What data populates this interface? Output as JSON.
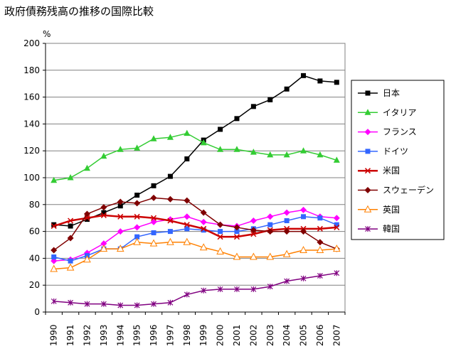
{
  "chart_data": {
    "type": "line",
    "title": "政府債務残高の推移の国際比較",
    "ylabel": "%",
    "xlabel": "",
    "ylim": [
      0,
      200
    ],
    "ytick_step": 20,
    "grid": "horizontal",
    "legend_position": "right",
    "x": [
      "1990",
      "1991",
      "1992",
      "1993",
      "1994",
      "1995",
      "1996",
      "1997",
      "1998",
      "1999",
      "2000",
      "2001",
      "2002",
      "2003",
      "2004",
      "2005",
      "2006",
      "2007"
    ],
    "series": [
      {
        "name": "日本",
        "color": "#000000",
        "marker": "square",
        "values": [
          65,
          64,
          69,
          74,
          79,
          87,
          94,
          101,
          114,
          128,
          136,
          144,
          153,
          158,
          166,
          176,
          172,
          171
        ]
      },
      {
        "name": "イタリア",
        "color": "#33cc33",
        "marker": "triangle",
        "values": [
          98,
          100,
          107,
          116,
          121,
          122,
          129,
          130,
          133,
          126,
          121,
          121,
          119,
          117,
          117,
          120,
          117,
          113
        ]
      },
      {
        "name": "フランス",
        "color": "#ff00ff",
        "marker": "diamond",
        "values": [
          38,
          39,
          44,
          51,
          60,
          63,
          67,
          69,
          71,
          67,
          65,
          64,
          68,
          71,
          74,
          76,
          71,
          70
        ]
      },
      {
        "name": "ドイツ",
        "color": "#3366ff",
        "marker": "square",
        "values": [
          41,
          38,
          42,
          47,
          47,
          56,
          59,
          60,
          62,
          61,
          60,
          60,
          62,
          65,
          68,
          71,
          70,
          65
        ]
      },
      {
        "name": "米国",
        "color": "#cc0000",
        "marker": "x",
        "values": [
          64,
          68,
          70,
          72,
          71,
          71,
          70,
          68,
          65,
          62,
          56,
          56,
          58,
          61,
          62,
          62,
          62,
          63
        ]
      },
      {
        "name": "スウェーデン",
        "color": "#800000",
        "marker": "diamond",
        "values": [
          46,
          55,
          73,
          78,
          82,
          81,
          85,
          84,
          83,
          74,
          65,
          63,
          61,
          60,
          60,
          60,
          52,
          47
        ]
      },
      {
        "name": "英国",
        "color": "#ff8000",
        "marker": "triangle-open",
        "values": [
          32,
          33,
          39,
          47,
          47,
          52,
          51,
          52,
          52,
          48,
          45,
          41,
          41,
          41,
          43,
          46,
          46,
          47
        ]
      },
      {
        "name": "韓国",
        "color": "#800080",
        "marker": "asterisk",
        "values": [
          8,
          7,
          6,
          6,
          5,
          5,
          6,
          7,
          13,
          16,
          17,
          17,
          17,
          19,
          23,
          25,
          27,
          29
        ]
      }
    ]
  }
}
